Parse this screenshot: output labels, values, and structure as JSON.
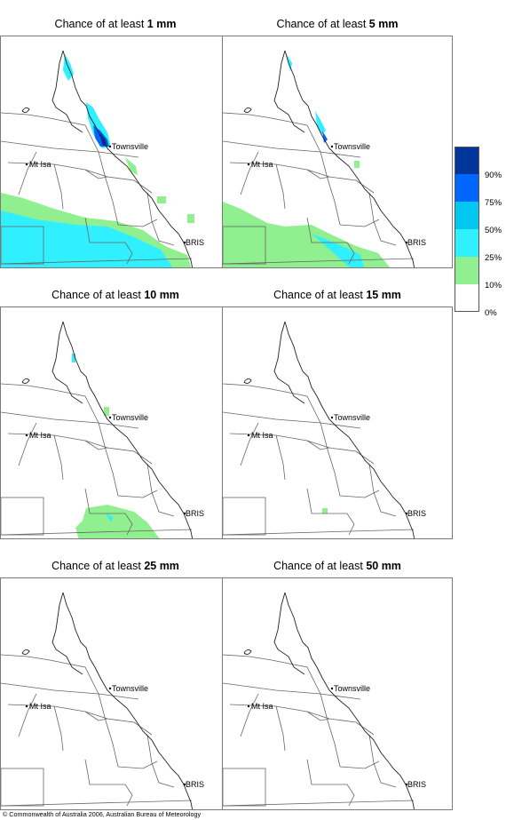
{
  "panels": [
    {
      "prefix": "Chance of at least ",
      "amount": "1 mm"
    },
    {
      "prefix": "Chance of at least ",
      "amount": "5 mm"
    },
    {
      "prefix": "Chance of at least ",
      "amount": "10 mm"
    },
    {
      "prefix": "Chance of at least ",
      "amount": "15 mm"
    },
    {
      "prefix": "Chance of at least ",
      "amount": "25 mm"
    },
    {
      "prefix": "Chance of at least ",
      "amount": "50 mm"
    }
  ],
  "places": {
    "townsville": "Townsville",
    "mt_isa": "Mt Isa",
    "brisbane": "BRIS"
  },
  "legend": {
    "labels": [
      "90%",
      "75%",
      "50%",
      "25%",
      "10%",
      "0%"
    ],
    "colors": [
      "#00359b",
      "#0066ff",
      "#00c8f0",
      "#30f0ff",
      "#90f090",
      "#ffffff"
    ]
  },
  "copyright": "© Commonwealth of Australia 2006, Australian Bureau of Meteorology"
}
